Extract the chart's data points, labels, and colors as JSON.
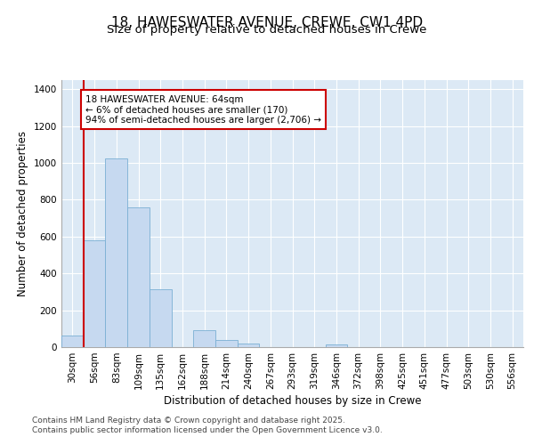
{
  "title_line1": "18, HAWESWATER AVENUE, CREWE, CW1 4PD",
  "title_line2": "Size of property relative to detached houses in Crewe",
  "xlabel": "Distribution of detached houses by size in Crewe",
  "ylabel": "Number of detached properties",
  "categories": [
    "30sqm",
    "56sqm",
    "83sqm",
    "109sqm",
    "135sqm",
    "162sqm",
    "188sqm",
    "214sqm",
    "240sqm",
    "267sqm",
    "293sqm",
    "319sqm",
    "346sqm",
    "372sqm",
    "398sqm",
    "425sqm",
    "451sqm",
    "477sqm",
    "503sqm",
    "530sqm",
    "556sqm"
  ],
  "values": [
    65,
    580,
    1025,
    760,
    315,
    0,
    90,
    40,
    20,
    0,
    0,
    0,
    15,
    0,
    0,
    0,
    0,
    0,
    0,
    0,
    0
  ],
  "bar_color": "#c6d9f0",
  "bar_edge_color": "#7bafd4",
  "annotation_text": "18 HAWESWATER AVENUE: 64sqm\n← 6% of detached houses are smaller (170)\n94% of semi-detached houses are larger (2,706) →",
  "annotation_box_color": "#ffffff",
  "annotation_box_edge": "#cc0000",
  "red_line_color": "#cc0000",
  "ylim": [
    0,
    1450
  ],
  "yticks": [
    0,
    200,
    400,
    600,
    800,
    1000,
    1200,
    1400
  ],
  "background_color": "#dce9f5",
  "grid_color": "#ffffff",
  "footer_text": "Contains HM Land Registry data © Crown copyright and database right 2025.\nContains public sector information licensed under the Open Government Licence v3.0.",
  "title_fontsize": 11,
  "subtitle_fontsize": 9.5,
  "axis_label_fontsize": 8.5,
  "tick_fontsize": 7.5,
  "annotation_fontsize": 7.5,
  "footer_fontsize": 6.5
}
